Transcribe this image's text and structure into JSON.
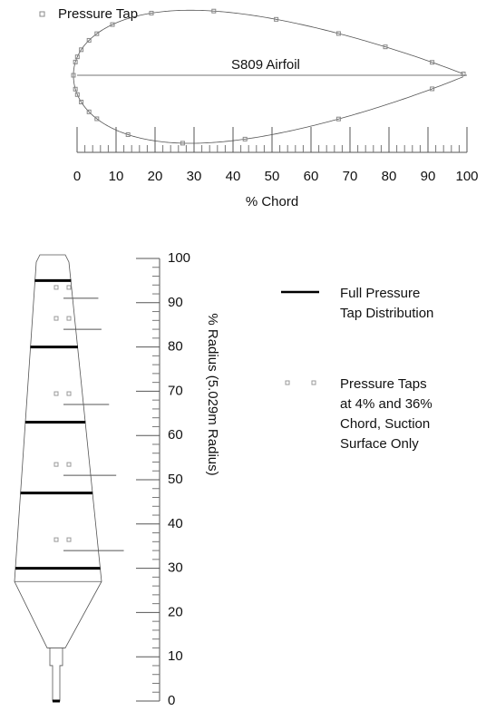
{
  "airfoil": {
    "legend": "Pressure Tap",
    "label": "S809 Airfoil",
    "upper_taps": [
      0,
      0.5,
      1,
      2,
      4,
      6,
      10,
      20,
      36,
      52,
      68,
      80,
      92,
      100
    ],
    "lower_taps": [
      0.5,
      1,
      2,
      4,
      6,
      14,
      28,
      44,
      68,
      92
    ],
    "chord_axis": {
      "label": "% Chord",
      "lim": [
        0,
        100
      ],
      "ticks": [
        0,
        10,
        20,
        30,
        40,
        50,
        60,
        70,
        80,
        90,
        100
      ]
    }
  },
  "blade": {
    "axis_label": "% Radius (5.029m Radius)",
    "lim": [
      0,
      100
    ],
    "ticks": [
      0,
      10,
      20,
      30,
      40,
      50,
      60,
      70,
      80,
      90,
      100
    ],
    "full_stations": [
      30,
      47,
      63,
      80,
      95
    ],
    "partial_stations": [
      34,
      51,
      67,
      84,
      91
    ],
    "legend_full": [
      "Full Pressure",
      "Tap Distribution"
    ],
    "legend_partial": [
      "Pressure Taps",
      "at 4% and 36%",
      "Chord, Suction",
      "Surface Only"
    ]
  }
}
